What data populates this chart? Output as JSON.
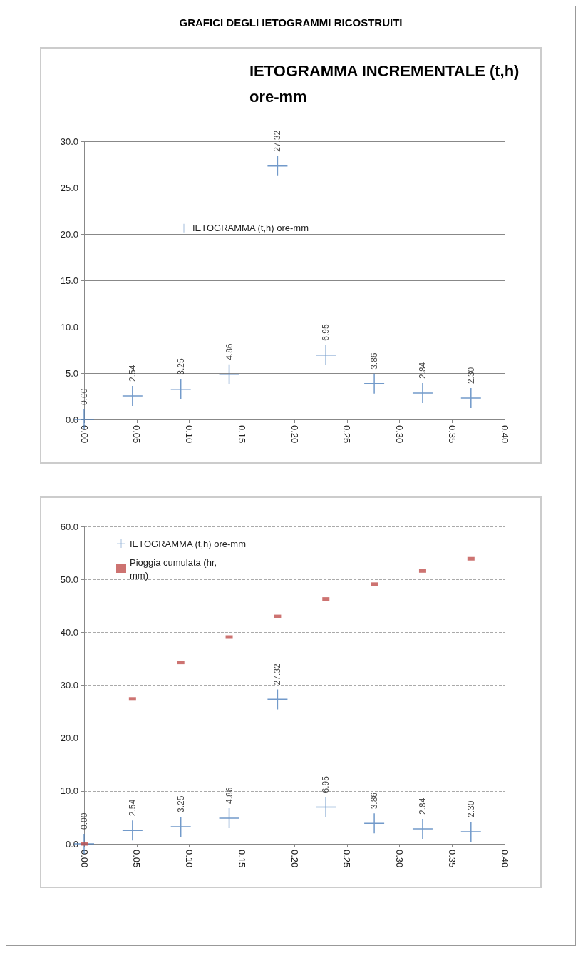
{
  "chart_data": [
    {
      "type": "scatter",
      "title": "IETOGRAMMA INCREMENTALE (t,h) ore-mm",
      "annotations": [
        "GRAFICI DEGLI IETOGRAMMI RICOSTRUITI"
      ],
      "x": [
        0,
        0.046,
        0.092,
        0.138,
        0.184,
        0.23,
        0.276,
        0.322,
        0.368
      ],
      "series": [
        {
          "name": "IETOGRAMMA (t,h) ore-mm",
          "color": "#4f81bd",
          "marker": "cross",
          "values": [
            0,
            2.54,
            3.25,
            4.86,
            27.32,
            6.95,
            3.86,
            2.84,
            2.3
          ],
          "value_labels": [
            "0.00",
            "2.54",
            "3.25",
            "4.86",
            "27.32",
            "6.95",
            "3.86",
            "2.84",
            "2.30"
          ]
        }
      ],
      "xlim": [
        0,
        0.4
      ],
      "xticks": [
        {
          "value": 0,
          "label": "0.00"
        },
        {
          "value": 0.05,
          "label": "0.05"
        },
        {
          "value": 0.1,
          "label": "0.10"
        },
        {
          "value": 0.15,
          "label": "0.15"
        },
        {
          "value": 0.2,
          "label": "0.20"
        },
        {
          "value": 0.25,
          "label": "0.25"
        },
        {
          "value": 0.3,
          "label": "0.30"
        },
        {
          "value": 0.35,
          "label": "0.35"
        },
        {
          "value": 0.4,
          "label": "0.40"
        }
      ],
      "ylim": [
        0,
        30
      ],
      "yticks": [
        {
          "value": 0,
          "label": "0.0"
        },
        {
          "value": 5,
          "label": "5.0"
        },
        {
          "value": 10,
          "label": "10.0"
        },
        {
          "value": 15,
          "label": "15.0"
        },
        {
          "value": 20,
          "label": "20.0"
        },
        {
          "value": 25,
          "label": "25.0"
        },
        {
          "value": 30,
          "label": "30.0"
        }
      ],
      "grid": "y",
      "line_style": "solid",
      "legend": "center"
    },
    {
      "type": "scatter",
      "x": [
        0,
        0.046,
        0.092,
        0.138,
        0.184,
        0.23,
        0.276,
        0.322,
        0.368
      ],
      "series": [
        {
          "name": "IETOGRAMMA (t,h) ore-mm",
          "color": "#4f81bd",
          "marker": "cross",
          "values": [
            0,
            2.54,
            3.25,
            4.86,
            27.32,
            6.95,
            3.86,
            2.84,
            2.3
          ],
          "value_labels": [
            "0.00",
            "2.54",
            "3.25",
            "4.86",
            "27.32",
            "6.95",
            "3.86",
            "2.84",
            "2.30"
          ]
        },
        {
          "name": "Pioggia cumulata (hr, mm)",
          "color": "#c0504d",
          "marker": "square",
          "values": [
            0,
            27.4,
            34.3,
            39.1,
            43.0,
            46.3,
            49.1,
            51.6,
            53.9
          ]
        }
      ],
      "xlim": [
        0,
        0.4
      ],
      "xticks": [
        {
          "value": 0,
          "label": "0.00"
        },
        {
          "value": 0.05,
          "label": "0.05"
        },
        {
          "value": 0.1,
          "label": "0.10"
        },
        {
          "value": 0.15,
          "label": "0.15"
        },
        {
          "value": 0.2,
          "label": "0.20"
        },
        {
          "value": 0.25,
          "label": "0.25"
        },
        {
          "value": 0.3,
          "label": "0.30"
        },
        {
          "value": 0.35,
          "label": "0.35"
        },
        {
          "value": 0.4,
          "label": "0.40"
        }
      ],
      "ylim": [
        0,
        60
      ],
      "yticks": [
        {
          "value": 0,
          "label": "0.0"
        },
        {
          "value": 10,
          "label": "10.0"
        },
        {
          "value": 20,
          "label": "20.0"
        },
        {
          "value": 30,
          "label": "30.0"
        },
        {
          "value": 40,
          "label": "40.0"
        },
        {
          "value": 50,
          "label": "50.0"
        },
        {
          "value": 60,
          "label": "60.0"
        }
      ],
      "grid": "y",
      "line_style": "dashed",
      "legend": "top left"
    }
  ]
}
